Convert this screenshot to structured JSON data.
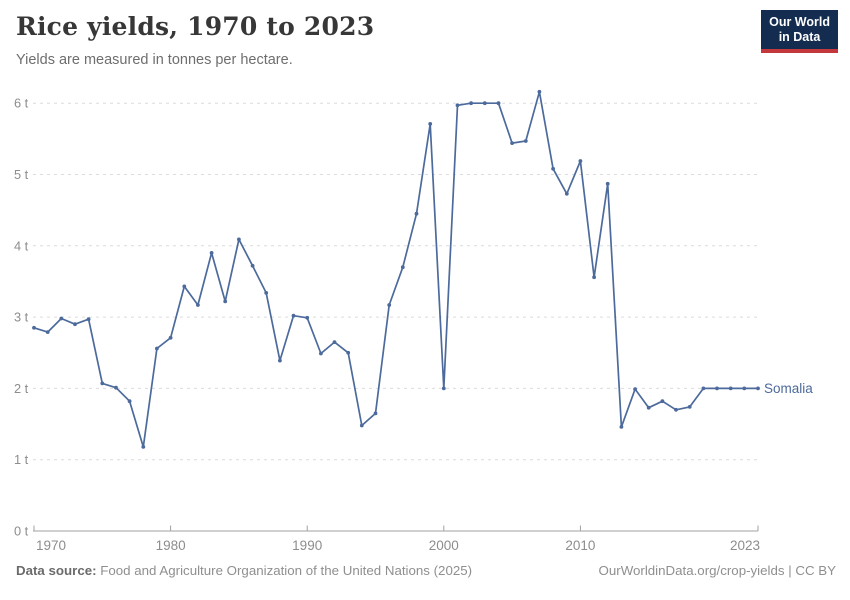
{
  "header": {
    "title": "Rice yields, 1970 to 2023",
    "subtitle": "Yields are measured in tonnes per hectare.",
    "logo_line1": "Our World",
    "logo_line2": "in Data"
  },
  "chart_data": {
    "type": "line",
    "title": "Rice yields, 1970 to 2023",
    "ylabel": "",
    "xlabel": "",
    "unit": "tonnes per hectare",
    "grid": "horizontal-dashed",
    "legend_position": "end-of-line",
    "ylim": [
      0,
      6.4
    ],
    "yticks": [
      0,
      1,
      2,
      3,
      4,
      5,
      6
    ],
    "ytick_labels": [
      "0 t",
      "1 t",
      "2 t",
      "3 t",
      "4 t",
      "5 t",
      "6 t"
    ],
    "xticks": [
      1970,
      1980,
      1990,
      2000,
      2010,
      2023
    ],
    "xtick_labels": [
      "1970",
      "1980",
      "1990",
      "2000",
      "2010",
      "2023"
    ],
    "x": [
      1970,
      1971,
      1972,
      1973,
      1974,
      1975,
      1976,
      1977,
      1978,
      1979,
      1980,
      1981,
      1982,
      1983,
      1984,
      1985,
      1986,
      1987,
      1988,
      1989,
      1990,
      1991,
      1992,
      1993,
      1994,
      1995,
      1996,
      1997,
      1998,
      1999,
      2000,
      2001,
      2002,
      2003,
      2004,
      2005,
      2006,
      2007,
      2008,
      2009,
      2010,
      2011,
      2012,
      2013,
      2014,
      2015,
      2016,
      2017,
      2018,
      2019,
      2020,
      2021,
      2022,
      2023
    ],
    "series": [
      {
        "name": "Somalia",
        "color": "#4c6a9c",
        "values": [
          2.85,
          2.79,
          2.98,
          2.9,
          2.97,
          2.07,
          2.01,
          1.82,
          1.18,
          2.56,
          2.71,
          3.43,
          3.17,
          3.9,
          3.22,
          4.09,
          3.72,
          3.34,
          2.39,
          3.02,
          2.99,
          2.49,
          2.65,
          2.5,
          1.48,
          1.65,
          3.17,
          3.7,
          4.45,
          5.71,
          2.0,
          5.97,
          6.0,
          6.0,
          6.0,
          5.44,
          5.47,
          6.16,
          5.08,
          4.73,
          5.19,
          3.56,
          4.87,
          1.46,
          1.99,
          1.73,
          1.82,
          1.7,
          1.74,
          2.0,
          2.0,
          2.0,
          2.0,
          2.0
        ]
      }
    ]
  },
  "footer": {
    "datasource_label": "Data source:",
    "datasource_text": "Food and Agriculture Organization of the United Nations (2025)",
    "credit": "OurWorldinData.org/crop-yields | CC BY"
  },
  "colors": {
    "series": "#4c6a9c",
    "gridline": "#dcdcdc",
    "axis": "#a1a1a1",
    "tick_label": "#8d8d8d",
    "title": "#373737",
    "subtitle": "#6e6e6e",
    "logo_bg": "#132c50",
    "logo_accent": "#c2383c"
  }
}
